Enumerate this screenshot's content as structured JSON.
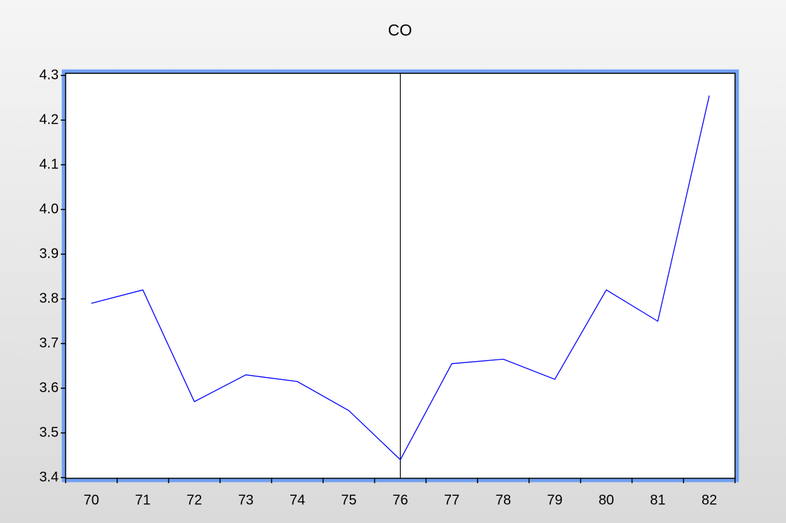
{
  "chart_data": {
    "type": "line",
    "title": "CO",
    "categories": [
      "70",
      "71",
      "72",
      "73",
      "74",
      "75",
      "76",
      "77",
      "78",
      "79",
      "80",
      "81",
      "82"
    ],
    "series": [
      {
        "name": "CO",
        "color": "#0000ff",
        "values": [
          3.79,
          3.82,
          3.57,
          3.63,
          3.615,
          3.55,
          3.44,
          3.655,
          3.665,
          3.62,
          3.82,
          3.75,
          4.255
        ]
      }
    ],
    "ylim": [
      3.4,
      4.3
    ],
    "yticks": [
      3.4,
      3.5,
      3.6,
      3.7,
      3.8,
      3.9,
      {
        "value": 4,
        "label": "4.0"
      },
      4.1,
      4.2,
      4.3
    ],
    "vertical_line_at": "76",
    "grid": false
  }
}
